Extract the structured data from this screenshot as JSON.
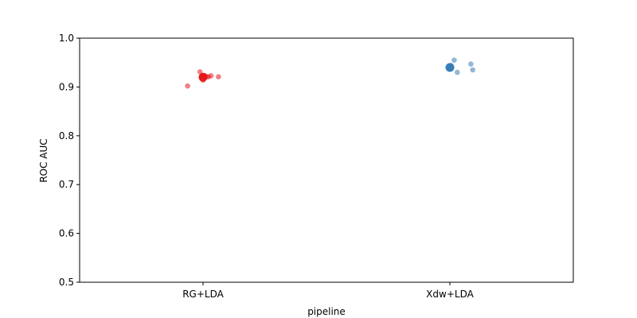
{
  "chart_data": {
    "type": "scatter",
    "title": "",
    "xlabel": "pipeline",
    "ylabel": "ROC AUC",
    "categories": [
      "RG+LDA",
      "Xdw+LDA"
    ],
    "ylim": [
      0.5,
      1.0
    ],
    "yticks": [
      "0.5",
      "0.6",
      "0.7",
      "0.8",
      "0.9",
      "1.0"
    ],
    "grid": false,
    "series": [
      {
        "category": "RG+LDA",
        "color": "#e41a1c",
        "points": [
          {
            "jitter": -0.25,
            "y": 0.902
          },
          {
            "jitter": -0.05,
            "y": 0.931
          },
          {
            "jitter": -0.02,
            "y": 0.917
          },
          {
            "jitter": 0.0,
            "y": 0.914
          },
          {
            "jitter": 0.03,
            "y": 0.923
          },
          {
            "jitter": 0.06,
            "y": 0.921
          },
          {
            "jitter": 0.09,
            "y": 0.921
          },
          {
            "jitter": 0.13,
            "y": 0.923
          },
          {
            "jitter": 0.25,
            "y": 0.921
          }
        ],
        "mean": 0.92,
        "error": [
          0.913,
          0.926
        ]
      },
      {
        "category": "Xdw+LDA",
        "color": "#377eb8",
        "points": [
          {
            "jitter": -0.01,
            "y": 0.937
          },
          {
            "jitter": 0.02,
            "y": 0.944
          },
          {
            "jitter": 0.07,
            "y": 0.955
          },
          {
            "jitter": 0.12,
            "y": 0.93
          },
          {
            "jitter": 0.34,
            "y": 0.947
          },
          {
            "jitter": 0.37,
            "y": 0.935
          }
        ],
        "mean": 0.94,
        "error": [
          0.935,
          0.944
        ]
      }
    ]
  }
}
